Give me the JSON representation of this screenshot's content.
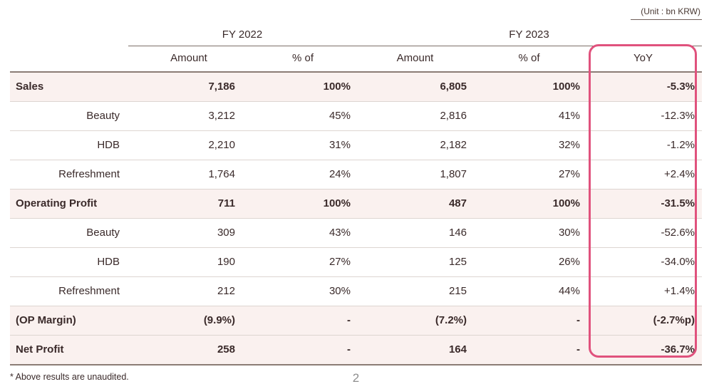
{
  "meta": {
    "unit_note": "(Unit : bn KRW)",
    "footnote": "* Above results are unaudited.",
    "page_number": "2"
  },
  "colors": {
    "accent_pink": "#e0527d",
    "highlight_row_bg": "#faf1ef",
    "text": "#3a2a2a"
  },
  "table": {
    "group_headers": [
      "FY 2022",
      "FY 2023"
    ],
    "col_headers": [
      "Amount",
      "% of",
      "Amount",
      "% of",
      "YoY"
    ],
    "rows": [
      {
        "label": "Sales",
        "style": "main",
        "fy2022_amount": "7,186",
        "fy2022_pct": "100%",
        "fy2023_amount": "6,805",
        "fy2023_pct": "100%",
        "yoy": "-5.3%"
      },
      {
        "label": "Beauty",
        "style": "sub",
        "fy2022_amount": "3,212",
        "fy2022_pct": "45%",
        "fy2023_amount": "2,816",
        "fy2023_pct": "41%",
        "yoy": "-12.3%"
      },
      {
        "label": "HDB",
        "style": "sub",
        "fy2022_amount": "2,210",
        "fy2022_pct": "31%",
        "fy2023_amount": "2,182",
        "fy2023_pct": "32%",
        "yoy": "-1.2%"
      },
      {
        "label": "Refreshment",
        "style": "sub",
        "fy2022_amount": "1,764",
        "fy2022_pct": "24%",
        "fy2023_amount": "1,807",
        "fy2023_pct": "27%",
        "yoy": "+2.4%"
      },
      {
        "label": "Operating Profit",
        "style": "main",
        "fy2022_amount": "711",
        "fy2022_pct": "100%",
        "fy2023_amount": "487",
        "fy2023_pct": "100%",
        "yoy": "-31.5%"
      },
      {
        "label": "Beauty",
        "style": "sub",
        "fy2022_amount": "309",
        "fy2022_pct": "43%",
        "fy2023_amount": "146",
        "fy2023_pct": "30%",
        "yoy": "-52.6%"
      },
      {
        "label": "HDB",
        "style": "sub",
        "fy2022_amount": "190",
        "fy2022_pct": "27%",
        "fy2023_amount": "125",
        "fy2023_pct": "26%",
        "yoy": "-34.0%"
      },
      {
        "label": "Refreshment",
        "style": "sub",
        "fy2022_amount": "212",
        "fy2022_pct": "30%",
        "fy2023_amount": "215",
        "fy2023_pct": "44%",
        "yoy": "+1.4%"
      },
      {
        "label": "(OP Margin)",
        "style": "main",
        "fy2022_amount": "(9.9%)",
        "fy2022_pct": "-",
        "fy2023_amount": "(7.2%)",
        "fy2023_pct": "-",
        "yoy": "(-2.7%p)"
      },
      {
        "label": "Net Profit",
        "style": "main",
        "fy2022_amount": "258",
        "fy2022_pct": "-",
        "fy2023_amount": "164",
        "fy2023_pct": "-",
        "yoy": "-36.7%"
      }
    ]
  }
}
